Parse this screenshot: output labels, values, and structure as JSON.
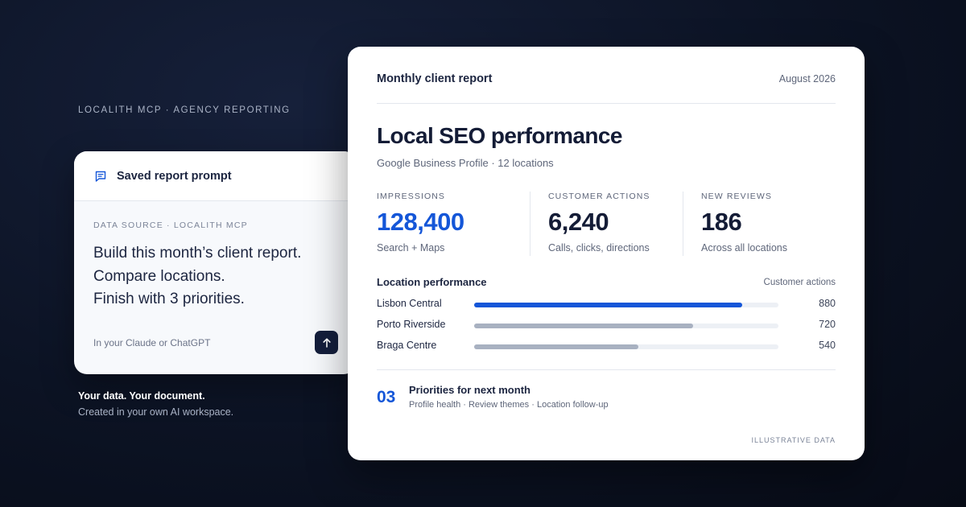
{
  "eyebrow": "LOCALITH MCP · AGENCY REPORTING",
  "prompt_card": {
    "title": "Saved report prompt",
    "icon": "message-square-icon",
    "data_source": "DATA SOURCE · LOCALITH MCP",
    "lines": [
      "Build this month’s client report.",
      "Compare locations.",
      "Finish with 3 priorities."
    ],
    "footer": "In your Claude or ChatGPT",
    "send_icon": "arrow-up-icon"
  },
  "tagline": {
    "line1": "Your data. Your document.",
    "line2": "Created in your own AI workspace."
  },
  "report": {
    "header_title": "Monthly client report",
    "date": "August 2026",
    "title": "Local SEO performance",
    "subtitle": "Google Business Profile · 12 locations",
    "metrics": [
      {
        "label": "IMPRESSIONS",
        "value": "128,400",
        "desc": "Search + Maps"
      },
      {
        "label": "CUSTOMER ACTIONS",
        "value": "6,240",
        "desc": "Calls, clicks, directions"
      },
      {
        "label": "NEW REVIEWS",
        "value": "186",
        "desc": "Across all locations"
      }
    ],
    "locations": {
      "heading": "Location performance",
      "column": "Customer actions",
      "max": 1000,
      "rows": [
        {
          "name": "Lisbon Central",
          "value": 880,
          "label": "880",
          "color": "#1456d8"
        },
        {
          "name": "Porto Riverside",
          "value": 720,
          "label": "720",
          "color": "#a8b1c1"
        },
        {
          "name": "Braga Centre",
          "value": 540,
          "label": "540",
          "color": "#a8b1c1"
        }
      ]
    },
    "priorities": {
      "number": "03",
      "title": "Priorities for next month",
      "items": "Profile health · Review themes · Location follow-up"
    },
    "footnote": "ILLUSTRATIVE DATA"
  },
  "colors": {
    "accent": "#1456d8",
    "navy": "#141e3c",
    "muted_bar": "#a8b1c1"
  }
}
